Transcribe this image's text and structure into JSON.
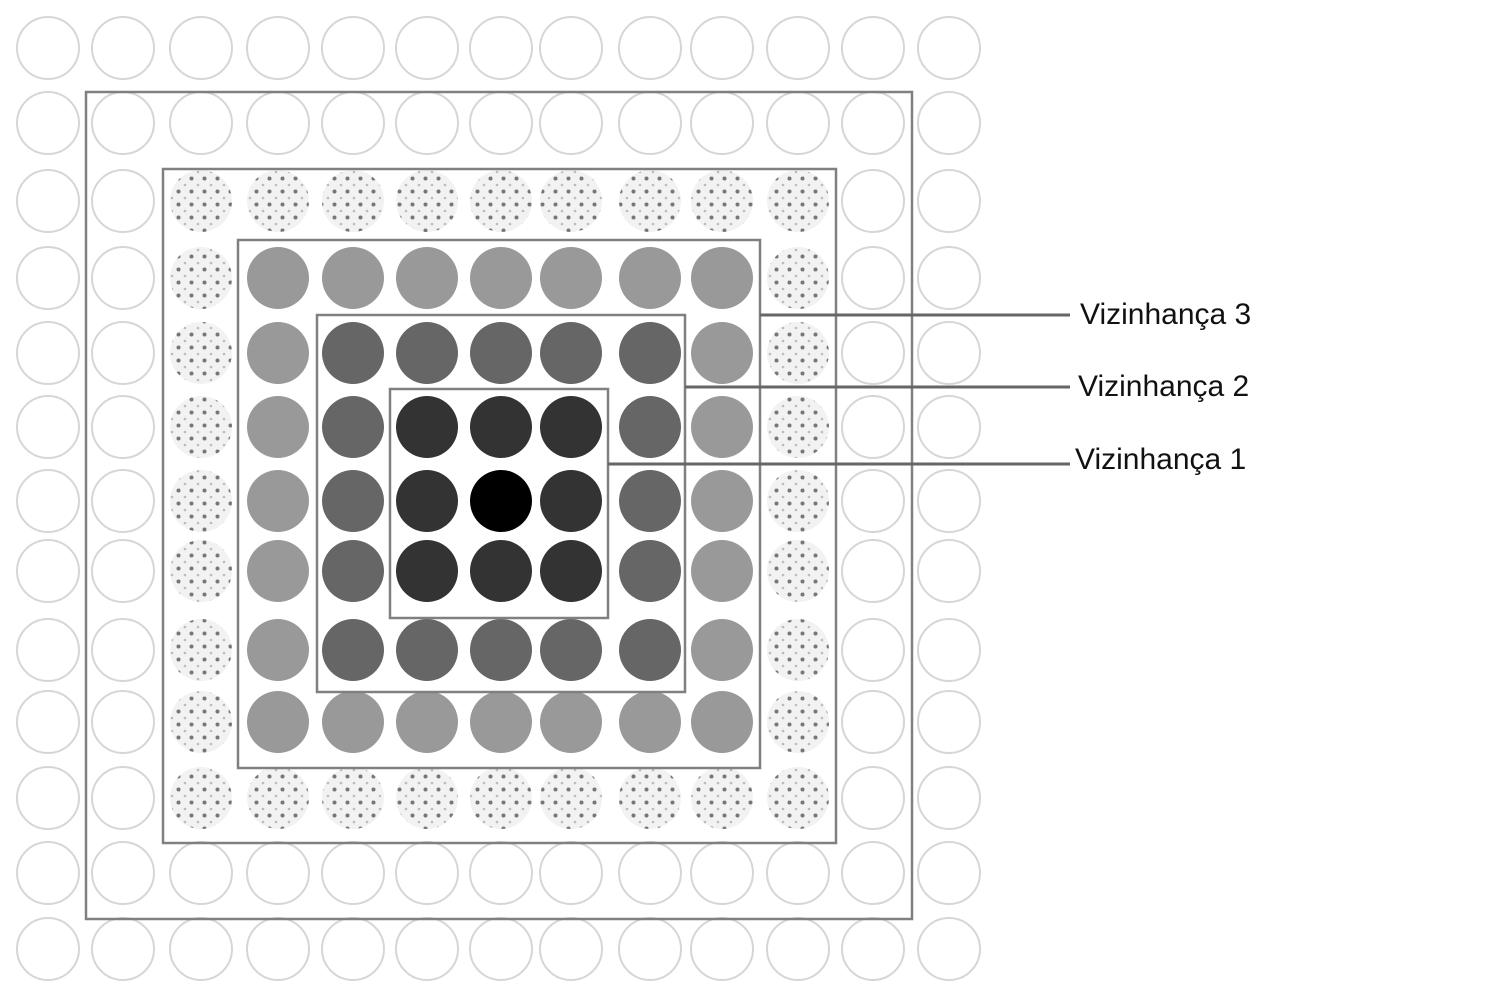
{
  "diagram": {
    "grid_rows": 13,
    "grid_cols": 13,
    "center": {
      "row": 6,
      "col": 6
    },
    "colors": {
      "center": "#000000",
      "ring1": "#333333",
      "ring2": "#666666",
      "ring3": "#999999",
      "ring4_bg": "#f2f2f2",
      "ring4_dot": "#777777",
      "outer_stroke": "#d6d6d6",
      "box_stroke": "#808080",
      "leader_line": "#666666"
    },
    "labels": [
      {
        "id": "vizinhanca-3",
        "text": "Vizinhança 3",
        "ring": 3
      },
      {
        "id": "vizinhanca-2",
        "text": "Vizinhança 2",
        "ring": 2
      },
      {
        "id": "vizinhanca-1",
        "text": "Vizinhança 1",
        "ring": 1
      }
    ]
  }
}
